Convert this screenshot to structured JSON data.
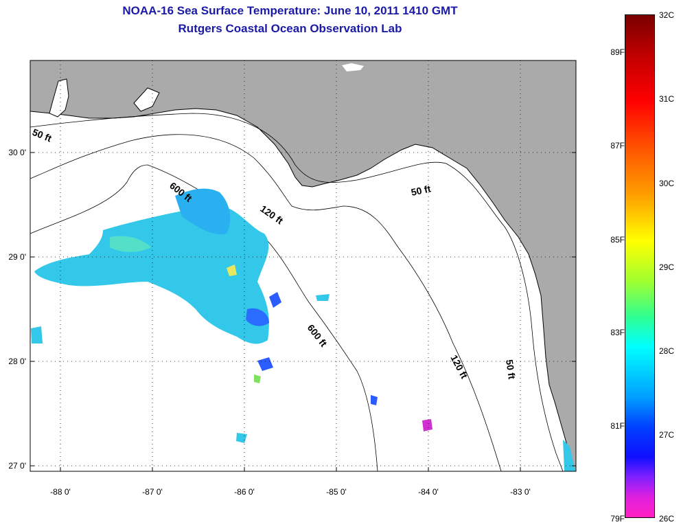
{
  "title": "NOAA-16 Sea Surface Temperature:  June 10, 2011 1410 GMT",
  "subtitle": "Rutgers Coastal Ocean Observation Lab",
  "map": {
    "lon_ticks": [
      "-88 0'",
      "-87 0'",
      "-86 0'",
      "-85 0'",
      "-84 0'",
      "-83 0'"
    ],
    "lat_ticks": [
      "30 0'",
      "29 0'",
      "28 0'",
      "27 0'"
    ],
    "depth_labels": [
      "50 ft",
      "600 ft",
      "120 ft",
      "50 ft",
      "600 ft",
      "120 ft",
      "50 ft"
    ],
    "colors": {
      "land": "#aaaaaa",
      "water": "#ffffff",
      "grid": "#000000"
    }
  },
  "colorbar": {
    "celsius": [
      "32C",
      "31C",
      "30C",
      "29C",
      "28C",
      "27C",
      "26C"
    ],
    "fahrenheit": [
      "89F",
      "87F",
      "85F",
      "83F",
      "81F",
      "79F"
    ]
  }
}
